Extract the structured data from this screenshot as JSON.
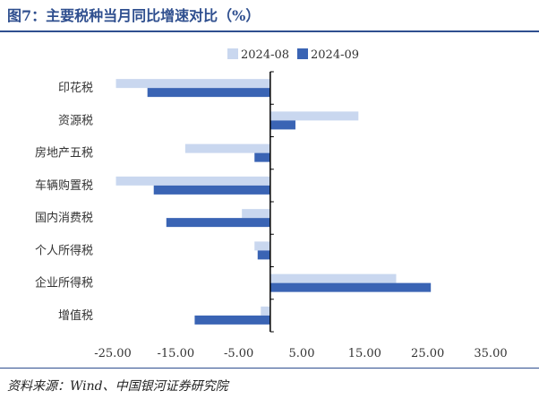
{
  "header": {
    "title": "图7：主要税种当月同比增速对比（%）"
  },
  "footer": {
    "source": "资料来源：Wind、中国银河证券研究院"
  },
  "colors": {
    "series_1": "#c9d7ef",
    "series_2": "#3a64b4",
    "axis": "#000000",
    "title": "#2f4f8f"
  },
  "chart_data": {
    "type": "bar",
    "orientation": "horizontal",
    "title": "",
    "xlabel": "",
    "ylabel": "",
    "categories": [
      "印花税",
      "资源税",
      "房地产五税",
      "车辆购置税",
      "国内消费税",
      "个人所得税",
      "企业所得税",
      "增值税"
    ],
    "series": [
      {
        "name": "2024-08",
        "values": [
          -24.5,
          14.0,
          -13.5,
          -24.5,
          -4.5,
          -2.5,
          20.0,
          -1.5
        ]
      },
      {
        "name": "2024-09",
        "values": [
          -19.5,
          4.0,
          -2.5,
          -18.5,
          -16.5,
          -2.0,
          25.5,
          -12.0
        ]
      }
    ],
    "xlim": [
      -25,
      35
    ],
    "xticks": [
      -25,
      -15,
      -5,
      5,
      15,
      25,
      35
    ],
    "xtick_labels": [
      "-25.00",
      "-15.00",
      "-5.00",
      "5.00",
      "15.00",
      "25.00",
      "35.00"
    ],
    "grid": false,
    "legend_position": "top"
  }
}
